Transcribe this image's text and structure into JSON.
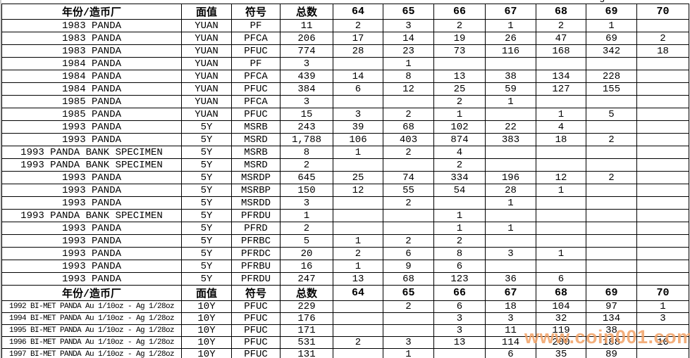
{
  "watermark": {
    "text": "www.coin001.com",
    "color": "#f2a266"
  },
  "top_edge_clipped_text": "g",
  "table": {
    "columns": [
      "年份/造币厂",
      "面值",
      "符号",
      "总数",
      "64",
      "65",
      "66",
      "67",
      "68",
      "69",
      "70"
    ],
    "sections": [
      {
        "rows": [
          [
            "1983 PANDA",
            "YUAN",
            "PF",
            "11",
            "2",
            "3",
            "2",
            "1",
            "2",
            "1",
            ""
          ],
          [
            "1983 PANDA",
            "YUAN",
            "PFCA",
            "206",
            "17",
            "14",
            "19",
            "26",
            "47",
            "69",
            "2"
          ],
          [
            "1983 PANDA",
            "YUAN",
            "PFUC",
            "774",
            "28",
            "23",
            "73",
            "116",
            "168",
            "342",
            "18"
          ],
          [
            "1984 PANDA",
            "YUAN",
            "PF",
            "3",
            "",
            "1",
            "",
            "",
            "",
            "",
            ""
          ],
          [
            "1984 PANDA",
            "YUAN",
            "PFCA",
            "439",
            "14",
            "8",
            "13",
            "38",
            "134",
            "228",
            ""
          ],
          [
            "1984 PANDA",
            "YUAN",
            "PFUC",
            "384",
            "6",
            "12",
            "25",
            "59",
            "127",
            "155",
            ""
          ],
          [
            "1985 PANDA",
            "YUAN",
            "PFCA",
            "3",
            "",
            "",
            "2",
            "1",
            "",
            "",
            ""
          ],
          [
            "1985 PANDA",
            "YUAN",
            "PFUC",
            "15",
            "3",
            "2",
            "1",
            "",
            "1",
            "5",
            ""
          ],
          [
            "1993 PANDA",
            "5Y",
            "MSRB",
            "243",
            "39",
            "68",
            "102",
            "22",
            "4",
            "",
            ""
          ],
          [
            "1993 PANDA",
            "5Y",
            "MSRD",
            "1,788",
            "106",
            "403",
            "874",
            "383",
            "18",
            "2",
            ""
          ],
          [
            "1993 PANDA BANK SPECIMEN",
            "5Y",
            "MSRB",
            "8",
            "1",
            "2",
            "4",
            "",
            "",
            "",
            ""
          ],
          [
            "1993 PANDA BANK SPECIMEN",
            "5Y",
            "MSRD",
            "2",
            "",
            "",
            "2",
            "",
            "",
            "",
            ""
          ],
          [
            "1993 PANDA",
            "5Y",
            "MSRDP",
            "645",
            "25",
            "74",
            "334",
            "196",
            "12",
            "2",
            ""
          ],
          [
            "1993 PANDA",
            "5Y",
            "MSRBP",
            "150",
            "12",
            "55",
            "54",
            "28",
            "1",
            "",
            ""
          ],
          [
            "1993 PANDA",
            "5Y",
            "MSRDD",
            "3",
            "",
            "2",
            "",
            "1",
            "",
            "",
            ""
          ],
          [
            "1993 PANDA BANK SPECIMEN",
            "5Y",
            "PFRDU",
            "1",
            "",
            "",
            "1",
            "",
            "",
            "",
            ""
          ],
          [
            "1993 PANDA",
            "5Y",
            "PFRD",
            "2",
            "",
            "",
            "1",
            "1",
            "",
            "",
            ""
          ],
          [
            "1993 PANDA",
            "5Y",
            "PFRBC",
            "5",
            "1",
            "2",
            "2",
            "",
            "",
            "",
            ""
          ],
          [
            "1993 PANDA",
            "5Y",
            "PFRDC",
            "20",
            "2",
            "6",
            "8",
            "3",
            "1",
            "",
            ""
          ],
          [
            "1993 PANDA",
            "5Y",
            "PFRBU",
            "16",
            "1",
            "9",
            "6",
            "",
            "",
            "",
            ""
          ],
          [
            "1993 PANDA",
            "5Y",
            "PFRDU",
            "247",
            "13",
            "68",
            "123",
            "36",
            "6",
            "",
            ""
          ]
        ]
      },
      {
        "rows": [
          [
            "1992 BI-MET PANDA Au 1/10oz - Ag 1/28oz",
            "10Y",
            "PFUC",
            "229",
            "",
            "2",
            "6",
            "18",
            "104",
            "97",
            "1"
          ],
          [
            "1994 BI-MET PANDA Au 1/10oz - Ag 1/28oz",
            "10Y",
            "PFUC",
            "176",
            "",
            "",
            "3",
            "3",
            "32",
            "134",
            "3"
          ],
          [
            "1995 BI-MET PANDA Au 1/10oz - Ag 1/28oz",
            "10Y",
            "PFUC",
            "171",
            "",
            "",
            "3",
            "11",
            "119",
            "38",
            ""
          ],
          [
            "1996 BI-MET PANDA Au 1/10oz - Ag 1/28oz",
            "10Y",
            "PFUC",
            "531",
            "2",
            "3",
            "13",
            "114",
            "200",
            "188",
            "10"
          ],
          [
            "1997 BI-MET PANDA Au 1/10oz - Ag 1/28oz",
            "10Y",
            "PFUC",
            "131",
            "",
            "1",
            "",
            "6",
            "35",
            "89",
            ""
          ]
        ]
      }
    ]
  }
}
